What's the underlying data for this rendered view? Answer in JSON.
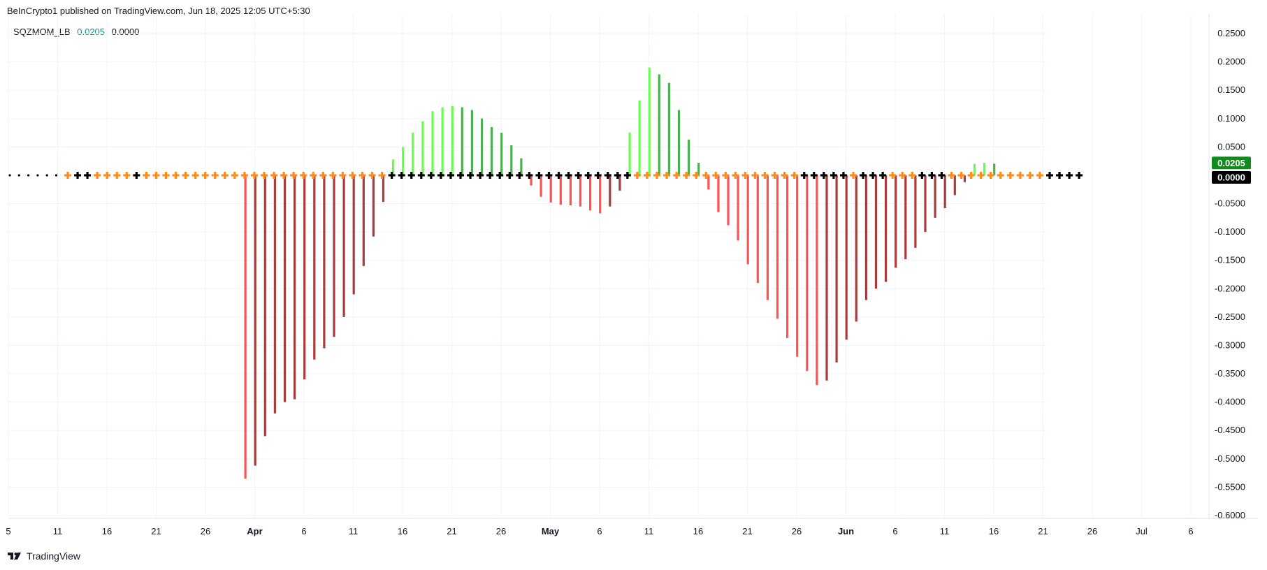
{
  "header": {
    "publisher": "BeInCrypto1 published on TradingView.com, Jun 18, 2025 12:05 UTC+5:30"
  },
  "legend": {
    "name": "SQZMOM_LB",
    "value1": "0.0205",
    "value2": "0.0000"
  },
  "footer": {
    "brand": "TradingView"
  },
  "colors": {
    "lime": "#66ff4d",
    "green": "#4caf50",
    "red": "#ff5252",
    "maroon": "#a83c3c",
    "orange": "#ff8c1a",
    "black": "#000000",
    "grid": "#f0f3fa",
    "price_green": "#138a1e"
  },
  "chart_data": {
    "type": "bar",
    "indicator": "SQZMOM_LB",
    "ylim": [
      -0.6,
      0.25
    ],
    "y_ticks": [
      "0.2500",
      "0.2000",
      "0.1500",
      "0.1000",
      "0.0500",
      "0.0000",
      "-0.0500",
      "-0.1000",
      "-0.1500",
      "-0.2000",
      "-0.2500",
      "-0.3000",
      "-0.3500",
      "-0.4000",
      "-0.4500",
      "-0.5000",
      "-0.5500",
      "-0.6000"
    ],
    "x_ticks": [
      "5",
      "11",
      "16",
      "21",
      "26",
      "Apr",
      "6",
      "11",
      "16",
      "21",
      "26",
      "May",
      "6",
      "11",
      "16",
      "21",
      "26",
      "Jun",
      "6",
      "11",
      "16",
      "21",
      "26",
      "Jul",
      "6"
    ],
    "x_ticks_bold": [
      "Apr",
      "May",
      "Jun"
    ],
    "bars": [
      {
        "v": -0.535,
        "c": "red"
      },
      {
        "v": -0.512,
        "c": "maroon"
      },
      {
        "v": -0.46,
        "c": "maroon"
      },
      {
        "v": -0.42,
        "c": "maroon"
      },
      {
        "v": -0.4,
        "c": "maroon"
      },
      {
        "v": -0.395,
        "c": "maroon"
      },
      {
        "v": -0.36,
        "c": "maroon"
      },
      {
        "v": -0.325,
        "c": "maroon"
      },
      {
        "v": -0.305,
        "c": "maroon"
      },
      {
        "v": -0.285,
        "c": "maroon"
      },
      {
        "v": -0.25,
        "c": "maroon"
      },
      {
        "v": -0.21,
        "c": "maroon"
      },
      {
        "v": -0.16,
        "c": "maroon"
      },
      {
        "v": -0.108,
        "c": "maroon"
      },
      {
        "v": -0.047,
        "c": "maroon"
      },
      {
        "v": 0.028,
        "c": "lime"
      },
      {
        "v": 0.05,
        "c": "lime"
      },
      {
        "v": 0.075,
        "c": "lime"
      },
      {
        "v": 0.095,
        "c": "lime"
      },
      {
        "v": 0.113,
        "c": "lime"
      },
      {
        "v": 0.12,
        "c": "lime"
      },
      {
        "v": 0.122,
        "c": "lime"
      },
      {
        "v": 0.12,
        "c": "green"
      },
      {
        "v": 0.115,
        "c": "green"
      },
      {
        "v": 0.1,
        "c": "green"
      },
      {
        "v": 0.085,
        "c": "green"
      },
      {
        "v": 0.075,
        "c": "green"
      },
      {
        "v": 0.053,
        "c": "green"
      },
      {
        "v": 0.03,
        "c": "green"
      },
      {
        "v": -0.018,
        "c": "red"
      },
      {
        "v": -0.038,
        "c": "red"
      },
      {
        "v": -0.048,
        "c": "red"
      },
      {
        "v": -0.052,
        "c": "red"
      },
      {
        "v": -0.053,
        "c": "red"
      },
      {
        "v": -0.055,
        "c": "red"
      },
      {
        "v": -0.062,
        "c": "red"
      },
      {
        "v": -0.067,
        "c": "red"
      },
      {
        "v": -0.055,
        "c": "maroon"
      },
      {
        "v": -0.027,
        "c": "maroon"
      },
      {
        "v": 0.075,
        "c": "lime"
      },
      {
        "v": 0.132,
        "c": "lime"
      },
      {
        "v": 0.19,
        "c": "lime"
      },
      {
        "v": 0.178,
        "c": "green"
      },
      {
        "v": 0.163,
        "c": "green"
      },
      {
        "v": 0.115,
        "c": "green"
      },
      {
        "v": 0.063,
        "c": "green"
      },
      {
        "v": 0.022,
        "c": "green"
      },
      {
        "v": -0.025,
        "c": "red"
      },
      {
        "v": -0.065,
        "c": "red"
      },
      {
        "v": -0.088,
        "c": "red"
      },
      {
        "v": -0.115,
        "c": "red"
      },
      {
        "v": -0.157,
        "c": "red"
      },
      {
        "v": -0.19,
        "c": "red"
      },
      {
        "v": -0.22,
        "c": "red"
      },
      {
        "v": -0.253,
        "c": "red"
      },
      {
        "v": -0.287,
        "c": "red"
      },
      {
        "v": -0.32,
        "c": "red"
      },
      {
        "v": -0.345,
        "c": "red"
      },
      {
        "v": -0.37,
        "c": "red"
      },
      {
        "v": -0.362,
        "c": "maroon"
      },
      {
        "v": -0.33,
        "c": "maroon"
      },
      {
        "v": -0.29,
        "c": "maroon"
      },
      {
        "v": -0.258,
        "c": "maroon"
      },
      {
        "v": -0.22,
        "c": "maroon"
      },
      {
        "v": -0.2,
        "c": "maroon"
      },
      {
        "v": -0.188,
        "c": "maroon"
      },
      {
        "v": -0.163,
        "c": "maroon"
      },
      {
        "v": -0.148,
        "c": "maroon"
      },
      {
        "v": -0.128,
        "c": "maroon"
      },
      {
        "v": -0.1,
        "c": "maroon"
      },
      {
        "v": -0.075,
        "c": "maroon"
      },
      {
        "v": -0.058,
        "c": "maroon"
      },
      {
        "v": -0.035,
        "c": "maroon"
      },
      {
        "v": -0.012,
        "c": "maroon"
      },
      {
        "v": 0.02,
        "c": "lime"
      },
      {
        "v": 0.022,
        "c": "lime"
      },
      {
        "v": 0.0205,
        "c": "green"
      }
    ],
    "squeeze_dots_small": 6,
    "squeeze_crosses": [
      "orange",
      "black",
      "black",
      "orange",
      "orange",
      "orange",
      "orange",
      "black",
      "orange",
      "orange",
      "orange",
      "orange",
      "orange",
      "orange",
      "orange",
      "orange",
      "orange",
      "orange",
      "orange",
      "orange",
      "orange",
      "orange",
      "orange",
      "orange",
      "orange",
      "orange",
      "orange",
      "orange",
      "orange",
      "orange",
      "orange",
      "orange",
      "orange",
      "black",
      "black",
      "black",
      "black",
      "black",
      "black",
      "black",
      "black",
      "black",
      "black",
      "black",
      "black",
      "black",
      "black",
      "black",
      "black",
      "black",
      "black",
      "black",
      "black",
      "black",
      "black",
      "black",
      "black",
      "black",
      "orange",
      "orange",
      "orange",
      "orange",
      "orange",
      "orange",
      "orange",
      "orange",
      "orange",
      "orange",
      "orange",
      "orange",
      "orange",
      "orange",
      "orange",
      "orange",
      "orange",
      "black",
      "black",
      "black",
      "black",
      "black",
      "orange",
      "black",
      "black",
      "black",
      "orange",
      "orange",
      "orange",
      "black",
      "black",
      "black",
      "orange",
      "orange",
      "orange",
      "orange",
      "orange",
      "orange",
      "orange",
      "orange",
      "orange",
      "orange",
      "black",
      "black",
      "black",
      "black"
    ],
    "last_values": [
      {
        "label": "0.0205",
        "color": "price_green"
      },
      {
        "label": "0.0000",
        "color": "black"
      }
    ]
  }
}
